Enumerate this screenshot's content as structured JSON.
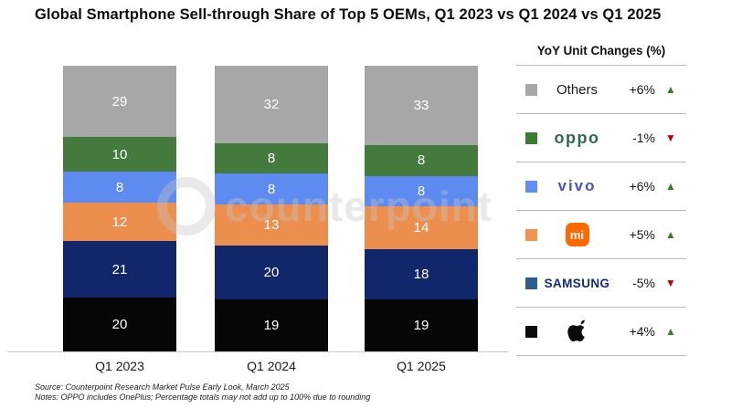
{
  "title": "Global Smartphone Sell-through Share of Top 5 OEMs, Q1 2023 vs Q1 2024 vs Q1 2025",
  "watermark": "counterpoint",
  "chart_data": {
    "type": "bar",
    "stacked": true,
    "stack_order": "top-to-bottom",
    "categories": [
      "Q1 2023",
      "Q1 2024",
      "Q1 2025"
    ],
    "series": [
      {
        "name": "Others",
        "color": "#a7a7a7",
        "values": [
          29,
          32,
          33
        ]
      },
      {
        "name": "OPPO",
        "color": "#447a3e",
        "values": [
          10,
          8,
          8
        ]
      },
      {
        "name": "vivo",
        "color": "#5e8bef",
        "values": [
          8,
          8,
          8
        ]
      },
      {
        "name": "Xiaomi",
        "color": "#ec8f4e",
        "values": [
          12,
          13,
          14
        ]
      },
      {
        "name": "Samsung",
        "color": "#12266b",
        "values": [
          21,
          20,
          18
        ]
      },
      {
        "name": "Apple",
        "color": "#060606",
        "values": [
          20,
          19,
          19
        ]
      }
    ],
    "value_suffix": "%",
    "ylim": [
      0,
      100
    ],
    "grid": false,
    "legend_position": "right"
  },
  "legend": {
    "header": "YoY Unit Changes (%)",
    "rows": [
      {
        "brand": "Others",
        "logo": "others",
        "logo_text": "Others",
        "logo_color": "#1b1b1b",
        "swatch": "#a7a7a7",
        "change": "+6%",
        "direction": "up"
      },
      {
        "brand": "OPPO",
        "logo": "oppo",
        "logo_text": "oppo",
        "logo_color": "#2f6b51",
        "swatch": "#3c7a37",
        "change": "-1%",
        "direction": "down"
      },
      {
        "brand": "vivo",
        "logo": "vivo",
        "logo_text": "vivo",
        "logo_color": "#4553c4",
        "swatch": "#6190f0",
        "change": "+6%",
        "direction": "up"
      },
      {
        "brand": "Xiaomi",
        "logo": "mi",
        "logo_text": "mi",
        "logo_color": "#ff6900",
        "swatch": "#ee9350",
        "change": "+5%",
        "direction": "up"
      },
      {
        "brand": "Samsung",
        "logo": "samsung",
        "logo_text": "SAMSUNG",
        "logo_color": "#152a79",
        "swatch": "#2e5f8c",
        "change": "-5%",
        "direction": "down"
      },
      {
        "brand": "Apple",
        "logo": "apple",
        "logo_text": "",
        "logo_color": "#0b0b0b",
        "swatch": "#0a0a0a",
        "change": "+4%",
        "direction": "up"
      }
    ],
    "icons": {
      "up_glyph": "▲",
      "down_glyph": "▼",
      "up_color": "#3c7d2a",
      "down_color": "#c00000"
    }
  },
  "footer": {
    "source": "Source: Counterpoint Research Market Pulse Early Look, March 2025",
    "notes": "Notes: OPPO includes OnePlus; Percentage totals may not add up to 100% due to rounding"
  }
}
